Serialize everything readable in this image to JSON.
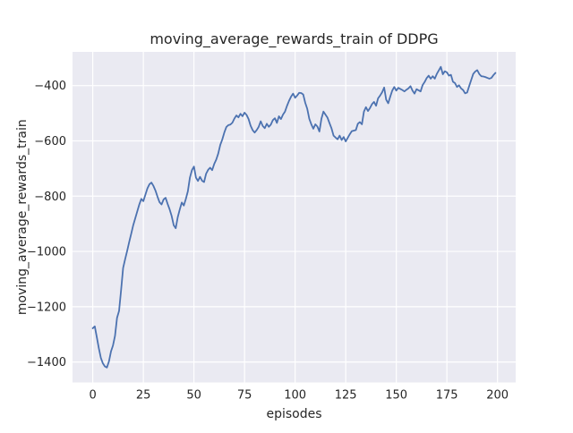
{
  "figure": {
    "title": "moving_average_rewards_train of DDPG",
    "xlabel": "episodes",
    "ylabel": "moving_average_rewards_train"
  },
  "style": {
    "figure_bg": "#ffffff",
    "axes_bg": "#eaeaf2",
    "grid_color": "#ffffff",
    "line_color": "#4c72b0",
    "text_color": "#262626"
  },
  "chart_data": {
    "type": "line",
    "title": "moving_average_rewards_train of DDPG",
    "xlabel": "episodes",
    "ylabel": "moving_average_rewards_train",
    "grid": true,
    "legend": "none",
    "x_start": 0,
    "x_step": 1,
    "xlim": [
      -10,
      209
    ],
    "ylim": [
      -1474,
      -278
    ],
    "xticks": [
      0,
      25,
      50,
      75,
      100,
      125,
      150,
      175,
      200
    ],
    "xtick_labels": [
      "0",
      "25",
      "50",
      "75",
      "100",
      "125",
      "150",
      "175",
      "200"
    ],
    "yticks": [
      -400,
      -600,
      -800,
      -1000,
      -1200,
      -1400
    ],
    "ytick_labels": [
      "−400",
      "−600",
      "−800",
      "−1000",
      "−1200",
      "−1400"
    ],
    "series": [
      {
        "name": "moving_average_rewards_train",
        "color": "#4c72b0",
        "values": [
          -1278,
          -1271,
          -1310,
          -1350,
          -1385,
          -1405,
          -1416,
          -1420,
          -1398,
          -1362,
          -1340,
          -1305,
          -1240,
          -1215,
          -1140,
          -1060,
          -1028,
          -998,
          -966,
          -936,
          -905,
          -880,
          -855,
          -830,
          -810,
          -818,
          -795,
          -772,
          -757,
          -751,
          -763,
          -780,
          -802,
          -822,
          -830,
          -812,
          -806,
          -828,
          -848,
          -872,
          -905,
          -916,
          -876,
          -848,
          -823,
          -834,
          -810,
          -782,
          -733,
          -706,
          -693,
          -733,
          -745,
          -730,
          -744,
          -749,
          -719,
          -705,
          -697,
          -706,
          -684,
          -668,
          -646,
          -615,
          -595,
          -570,
          -550,
          -543,
          -541,
          -534,
          -519,
          -508,
          -515,
          -502,
          -511,
          -498,
          -506,
          -521,
          -545,
          -561,
          -570,
          -561,
          -549,
          -529,
          -546,
          -554,
          -538,
          -549,
          -541,
          -525,
          -518,
          -535,
          -511,
          -521,
          -505,
          -494,
          -473,
          -455,
          -440,
          -429,
          -444,
          -436,
          -426,
          -427,
          -432,
          -462,
          -484,
          -520,
          -540,
          -556,
          -540,
          -548,
          -566,
          -520,
          -494,
          -505,
          -516,
          -536,
          -555,
          -581,
          -588,
          -594,
          -581,
          -597,
          -586,
          -602,
          -589,
          -576,
          -565,
          -563,
          -561,
          -538,
          -532,
          -540,
          -494,
          -478,
          -492,
          -481,
          -467,
          -459,
          -473,
          -446,
          -436,
          -424,
          -407,
          -451,
          -464,
          -440,
          -418,
          -405,
          -418,
          -408,
          -412,
          -416,
          -421,
          -415,
          -410,
          -402,
          -418,
          -429,
          -413,
          -417,
          -421,
          -398,
          -387,
          -373,
          -364,
          -375,
          -366,
          -375,
          -358,
          -345,
          -332,
          -359,
          -348,
          -352,
          -364,
          -361,
          -386,
          -391,
          -405,
          -399,
          -410,
          -416,
          -428,
          -425,
          -402,
          -380,
          -358,
          -349,
          -344,
          -358,
          -366,
          -367,
          -369,
          -372,
          -375,
          -372,
          -362,
          -354
        ]
      }
    ]
  }
}
